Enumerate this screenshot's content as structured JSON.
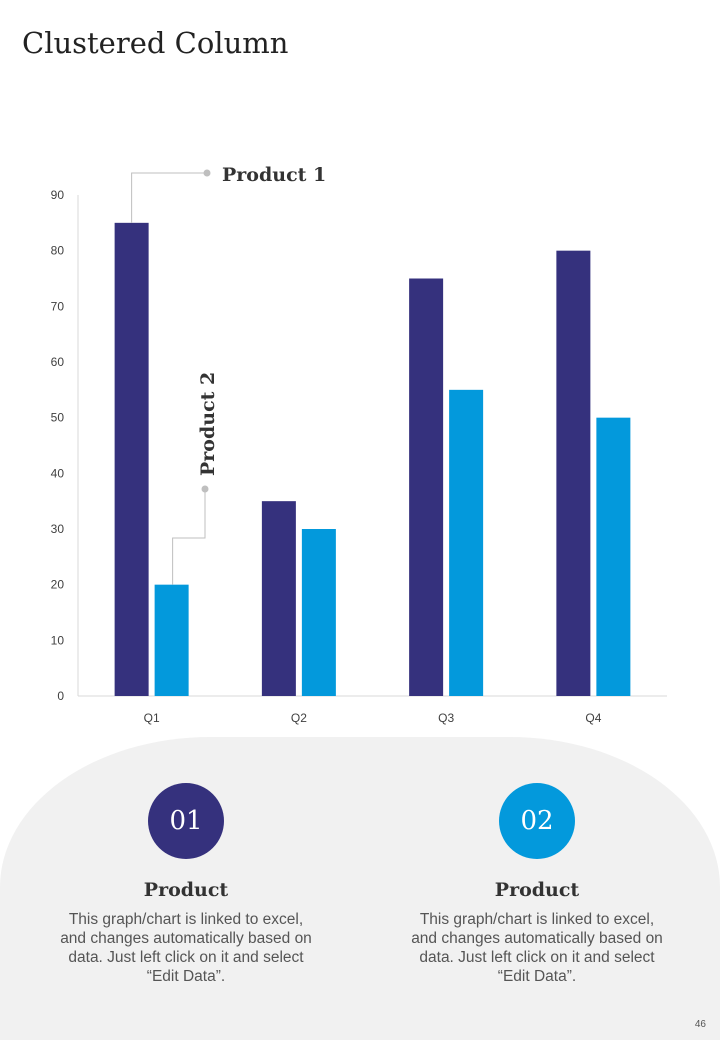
{
  "page": {
    "title": "Clustered Column",
    "page_number": "46"
  },
  "colors": {
    "product1": "#35317d",
    "product2": "#0399dc",
    "axis": "#d9d9d9",
    "callout": "#bfbfbf",
    "tick_text": "#404040",
    "panel": "#f1f1f1"
  },
  "chart_data": {
    "type": "bar",
    "categories": [
      "Q1",
      "Q2",
      "Q3",
      "Q4"
    ],
    "series": [
      {
        "name": "Product 1",
        "values": [
          85,
          35,
          75,
          80
        ]
      },
      {
        "name": "Product 2",
        "values": [
          20,
          30,
          55,
          50
        ]
      }
    ],
    "ylim": [
      0,
      90
    ],
    "yticks": [
      0,
      10,
      20,
      30,
      40,
      50,
      60,
      70,
      80,
      90
    ],
    "grid": false,
    "legend": "callout labels on first bars"
  },
  "cards": [
    {
      "number": "01",
      "title": "Product",
      "text": "This graph/chart is linked to excel, and changes automatically based on data. Just left click on it and select “Edit Data”."
    },
    {
      "number": "02",
      "title": "Product",
      "text": "This graph/chart is linked to excel, and changes automatically based on data. Just left click on it and select “Edit Data”."
    }
  ]
}
